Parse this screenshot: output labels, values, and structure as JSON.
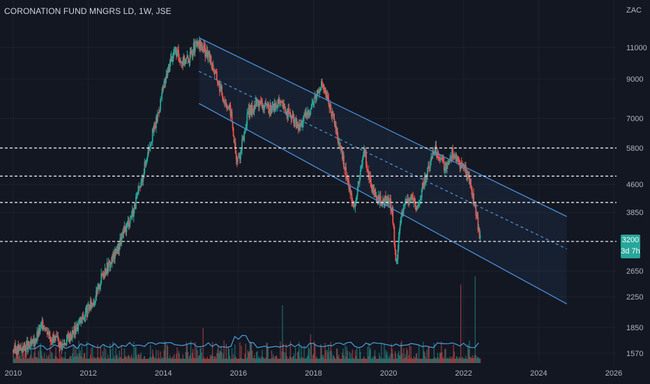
{
  "header": {
    "title": "CORONATION FUND MNGRS LD, 1W, JSE",
    "currency": "ZAC"
  },
  "last_price": {
    "value": "3200",
    "timer": "3d 7h"
  },
  "colors": {
    "background": "#131722",
    "up": "#26a69a",
    "down": "#ef5350",
    "channel": "#4a8fd9",
    "volume_ma": "#4a9fe0",
    "level_line": "#ffffff",
    "text": "#b2b5be"
  },
  "chart_data": {
    "type": "candlestick",
    "title": "CORONATION FUND MNGRS LD, 1W, JSE",
    "y_scale": "log",
    "ylim": [
      1500,
      12500
    ],
    "xlim": [
      2009.8,
      2026.3
    ],
    "x_ticks": [
      "2010",
      "2012",
      "2014",
      "2016",
      "2018",
      "2020",
      "2022",
      "2024",
      "2026"
    ],
    "y_ticks": [
      "11000",
      "9000",
      "7000",
      "5800",
      "4600",
      "3850",
      "3200",
      "2650",
      "2250",
      "1850",
      "1570"
    ],
    "price_path": [
      [
        2010.0,
        1600
      ],
      [
        2010.5,
        1650
      ],
      [
        2010.8,
        1900
      ],
      [
        2011.0,
        1750
      ],
      [
        2011.3,
        1650
      ],
      [
        2011.6,
        1800
      ],
      [
        2011.9,
        2000
      ],
      [
        2012.2,
        2250
      ],
      [
        2012.4,
        2650
      ],
      [
        2012.6,
        2800
      ],
      [
        2012.8,
        3100
      ],
      [
        2013.0,
        3500
      ],
      [
        2013.2,
        3900
      ],
      [
        2013.4,
        4600
      ],
      [
        2013.6,
        5800
      ],
      [
        2013.8,
        6800
      ],
      [
        2014.0,
        8500
      ],
      [
        2014.2,
        10200
      ],
      [
        2014.3,
        10800
      ],
      [
        2014.5,
        10100
      ],
      [
        2014.7,
        10300
      ],
      [
        2014.8,
        11000
      ],
      [
        2014.95,
        11200
      ],
      [
        2015.1,
        10800
      ],
      [
        2015.25,
        10200
      ],
      [
        2015.4,
        9200
      ],
      [
        2015.6,
        8000
      ],
      [
        2015.8,
        7300
      ],
      [
        2015.95,
        5300
      ],
      [
        2016.05,
        5600
      ],
      [
        2016.25,
        7200
      ],
      [
        2016.5,
        7800
      ],
      [
        2016.8,
        7400
      ],
      [
        2017.1,
        7700
      ],
      [
        2017.4,
        7100
      ],
      [
        2017.6,
        6600
      ],
      [
        2017.9,
        7400
      ],
      [
        2018.2,
        8800
      ],
      [
        2018.45,
        7500
      ],
      [
        2018.7,
        5900
      ],
      [
        2018.85,
        5000
      ],
      [
        2019.0,
        4300
      ],
      [
        2019.1,
        4000
      ],
      [
        2019.25,
        4900
      ],
      [
        2019.35,
        5800
      ],
      [
        2019.5,
        4700
      ],
      [
        2019.65,
        4200
      ],
      [
        2019.85,
        4100
      ],
      [
        2020.0,
        4200
      ],
      [
        2020.1,
        3900
      ],
      [
        2020.2,
        2700
      ],
      [
        2020.3,
        3600
      ],
      [
        2020.45,
        4100
      ],
      [
        2020.6,
        4300
      ],
      [
        2020.75,
        3900
      ],
      [
        2020.9,
        4500
      ],
      [
        2021.05,
        5000
      ],
      [
        2021.2,
        5800
      ],
      [
        2021.35,
        5600
      ],
      [
        2021.5,
        5100
      ],
      [
        2021.7,
        5700
      ],
      [
        2021.85,
        5300
      ],
      [
        2022.0,
        5200
      ],
      [
        2022.15,
        4800
      ],
      [
        2022.3,
        4000
      ],
      [
        2022.45,
        3200
      ]
    ],
    "channel": {
      "upper": [
        [
          2014.95,
          11700
        ],
        [
          2024.75,
          3750
        ]
      ],
      "middle": [
        [
          2014.95,
          9450
        ],
        [
          2024.75,
          3050
        ]
      ],
      "lower": [
        [
          2014.95,
          7700
        ],
        [
          2024.75,
          2150
        ]
      ]
    },
    "horizontal_levels": [
      5800,
      4850,
      4100,
      3200
    ],
    "volume": {
      "max_bar_fraction": 1.0,
      "ma_level_fraction": 0.28
    }
  }
}
